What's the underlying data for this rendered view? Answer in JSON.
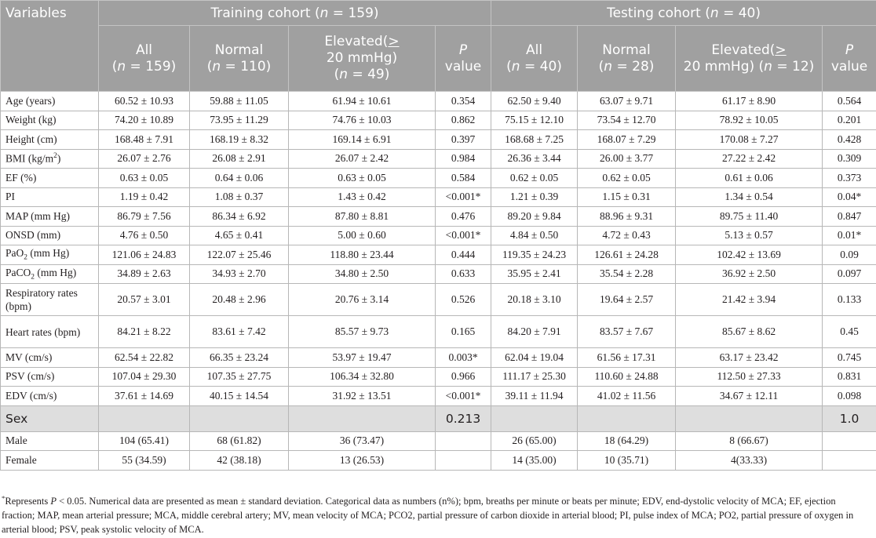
{
  "header": {
    "variables_label": "Variables",
    "training_group": "Training cohort (n = 159)",
    "testing_group": "Testing cohort (n = 40)",
    "training_columns": [
      "All (n = 159)",
      "Normal (n = 110)",
      "Elevated(≥ 20 mmHg) (n = 49)",
      "P value"
    ],
    "testing_columns": [
      "All (n = 40)",
      "Normal (n = 28)",
      "Elevated(≥ 20 mmHg) (n = 12)",
      "P value"
    ]
  },
  "rows": [
    {
      "label": "Age (years)",
      "cells": [
        "60.52 ± 10.93",
        "59.88 ± 11.05",
        "61.94 ± 10.61",
        "0.354",
        "62.50 ± 9.40",
        "63.07 ± 9.71",
        "61.17 ± 8.90",
        "0.564"
      ]
    },
    {
      "label": "Weight (kg)",
      "cells": [
        "74.20 ± 10.89",
        "73.95 ± 11.29",
        "74.76 ± 10.03",
        "0.862",
        "75.15 ± 12.10",
        "73.54 ± 12.70",
        "78.92 ± 10.05",
        "0.201"
      ]
    },
    {
      "label": "Height (cm)",
      "cells": [
        "168.48 ± 7.91",
        "168.19 ± 8.32",
        "169.14 ± 6.91",
        "0.397",
        "168.68 ± 7.25",
        "168.07 ± 7.29",
        "170.08 ± 7.27",
        "0.428"
      ]
    },
    {
      "label": "BMI (kg/m2)",
      "cells": [
        "26.07 ± 2.76",
        "26.08 ± 2.91",
        "26.07 ± 2.42",
        "0.984",
        "26.36 ± 3.44",
        "26.00 ± 3.77",
        "27.22 ± 2.42",
        "0.309"
      ]
    },
    {
      "label": "EF (%)",
      "cells": [
        "0.63 ± 0.05",
        "0.64 ± 0.06",
        "0.63 ± 0.05",
        "0.584",
        "0.62 ± 0.05",
        "0.62 ± 0.05",
        "0.61 ± 0.06",
        "0.373"
      ]
    },
    {
      "label": "PI",
      "cells": [
        "1.19 ± 0.42",
        "1.08 ± 0.37",
        "1.43 ± 0.42",
        "<0.001*",
        "1.21 ± 0.39",
        "1.15 ± 0.31",
        "1.34 ± 0.54",
        "0.04*"
      ]
    },
    {
      "label": "MAP (mm Hg)",
      "cells": [
        "86.79 ± 7.56",
        "86.34 ± 6.92",
        "87.80 ± 8.81",
        "0.476",
        "89.20 ± 9.84",
        "88.96 ± 9.31",
        "89.75 ± 11.40",
        "0.847"
      ]
    },
    {
      "label": "ONSD (mm)",
      "cells": [
        "4.76 ± 0.50",
        "4.65 ± 0.41",
        "5.00 ± 0.60",
        "<0.001*",
        "4.84 ± 0.50",
        "4.72 ± 0.43",
        "5.13 ± 0.57",
        "0.01*"
      ]
    },
    {
      "label": "PaO2 (mm Hg)",
      "cells": [
        "121.06 ± 24.83",
        "122.07 ± 25.46",
        "118.80 ± 23.44",
        "0.444",
        "119.35 ± 24.23",
        "126.61 ± 24.28",
        "102.42 ± 13.69",
        "0.09"
      ]
    },
    {
      "label": "PaCO2 (mm Hg)",
      "cells": [
        "34.89 ± 2.63",
        "34.93 ± 2.70",
        "34.80 ± 2.50",
        "0.633",
        "35.95 ± 2.41",
        "35.54 ± 2.28",
        "36.92 ± 2.50",
        "0.097"
      ]
    },
    {
      "label": "Respiratory rates (bpm)",
      "cells": [
        "20.57 ± 3.01",
        "20.48 ± 2.96",
        "20.76 ± 3.14",
        "0.526",
        "20.18 ± 3.10",
        "19.64 ± 2.57",
        "21.42 ± 3.94",
        "0.133"
      ]
    },
    {
      "label": "Heart rates (bpm)",
      "cells": [
        "84.21 ± 8.22",
        "83.61 ± 7.42",
        "85.57 ± 9.73",
        "0.165",
        "84.20 ± 7.91",
        "83.57 ± 7.67",
        "85.67 ± 8.62",
        "0.45"
      ]
    },
    {
      "label": "MV (cm/s)",
      "cells": [
        "62.54 ± 22.82",
        "66.35 ± 23.24",
        "53.97 ± 19.47",
        "0.003*",
        "62.04 ± 19.04",
        "61.56 ± 17.31",
        "63.17 ± 23.42",
        "0.745"
      ]
    },
    {
      "label": "PSV (cm/s)",
      "cells": [
        "107.04 ± 29.30",
        "107.35 ± 27.75",
        "106.34 ± 32.80",
        "0.966",
        "111.17 ± 25.30",
        "110.60 ± 24.88",
        "112.50 ± 27.33",
        "0.831"
      ]
    },
    {
      "label": "EDV (cm/s)",
      "cells": [
        "37.61 ± 14.69",
        "40.15 ± 14.54",
        "31.92 ± 13.51",
        "<0.001*",
        "39.11 ± 11.94",
        "41.02 ± 11.56",
        "34.67 ± 12.11",
        "0.098"
      ]
    }
  ],
  "sex": {
    "label": "Sex",
    "training_p": "0.213",
    "testing_p": "1.0",
    "rows": [
      {
        "label": "Male",
        "cells": [
          "104 (65.41)",
          "68 (61.82)",
          "36 (73.47)",
          "",
          "26 (65.00)",
          "18 (64.29)",
          "8 (66.67)",
          ""
        ]
      },
      {
        "label": "Female",
        "cells": [
          "55 (34.59)",
          "42 (38.18)",
          "13 (26.53)",
          "",
          "14 (35.00)",
          "10 (35.71)",
          "4(33.33)",
          ""
        ]
      }
    ]
  },
  "footnote": "*Represents P < 0.05. Numerical data are presented as mean ± standard deviation. Categorical data as numbers (n%); bpm, breaths per minute or beats per minute; EDV, end-dystolic velocity of MCA; EF, ejection fraction; MAP, mean arterial pressure; MCA, middle cerebral artery; MV, mean velocity of MCA; PCO2, partial pressure of carbon dioxide in arterial blood; PI, pulse index of MCA; PO2, partial pressure of oxygen in arterial blood; PSV, peak systolic velocity of MCA."
}
